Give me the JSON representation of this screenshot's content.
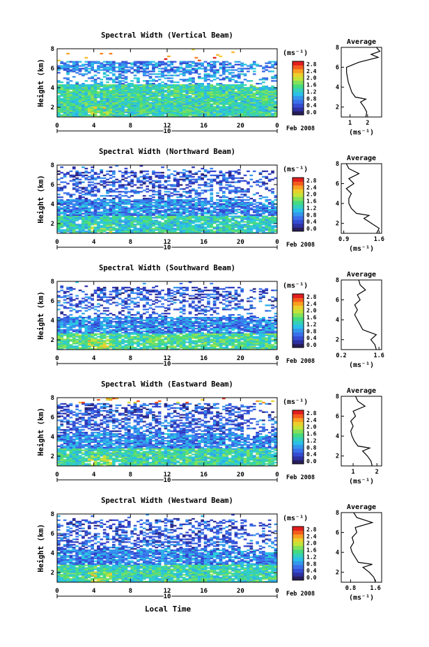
{
  "figure": {
    "xlabel_bottom": "Local Time",
    "date_label": "Feb 2008",
    "day_label": "10",
    "ylabel": "Height (km)",
    "colorbar_unit": "(ms⁻¹)",
    "avg_title": "Average",
    "avg_xlabel": "(ms⁻¹)"
  },
  "chart_data": [
    {
      "type": "heatmap",
      "title": "Spectral Width (Vertical Beam)",
      "xlabel": "Local Time",
      "ylabel": "Height (km)",
      "xlim": [
        0,
        24
      ],
      "ylim": [
        1,
        8
      ],
      "xticks": [
        "0",
        "4",
        "8",
        "12",
        "16",
        "20",
        "0"
      ],
      "yticks": [
        "2",
        "4",
        "6",
        "8"
      ],
      "colorbar": {
        "ticks": [
          "0.0",
          "0.4",
          "0.8",
          "1.2",
          "1.6",
          "2.0",
          "2.4",
          "2.8"
        ],
        "range": [
          0,
          2.9
        ]
      },
      "layers": [
        {
          "h0": 1.0,
          "h1": 4.3,
          "base": 1.4,
          "cov": 0.97
        },
        {
          "h0": 4.3,
          "h1": 5.5,
          "base": 0.9,
          "cov": 0.35
        },
        {
          "h0": 5.5,
          "h1": 6.6,
          "base": 0.8,
          "cov": 0.7
        },
        {
          "h0": 6.6,
          "h1": 8.0,
          "base": 2.6,
          "cov": 0.02
        }
      ],
      "avg_profile": {
        "xticks": [
          "1",
          "2"
        ],
        "xlim": [
          0.5,
          2.8
        ],
        "ylim": [
          1,
          8
        ],
        "yticks": [
          "2",
          "4",
          "6",
          "8"
        ],
        "height": [
          1.0,
          1.5,
          2.0,
          2.5,
          2.8,
          3.0,
          3.5,
          4.0,
          4.5,
          5.0,
          5.5,
          6.0,
          6.5,
          7.0,
          7.3,
          7.6,
          8.0
        ],
        "value": [
          1.9,
          1.95,
          1.8,
          1.6,
          1.9,
          1.3,
          1.1,
          1.0,
          0.9,
          0.85,
          0.8,
          0.8,
          1.5,
          2.6,
          2.2,
          2.7,
          2.5
        ]
      }
    },
    {
      "type": "heatmap",
      "title": "Spectral Width (Northward Beam)",
      "xlabel": "Local Time",
      "ylabel": "Height (km)",
      "xlim": [
        0,
        24
      ],
      "ylim": [
        1,
        8
      ],
      "xticks": [
        "0",
        "4",
        "8",
        "12",
        "16",
        "20",
        "0"
      ],
      "yticks": [
        "2",
        "4",
        "6",
        "8"
      ],
      "colorbar": {
        "ticks": [
          "0.0",
          "0.4",
          "0.8",
          "1.2",
          "1.6",
          "2.0",
          "2.4",
          "2.8"
        ],
        "range": [
          0,
          2.9
        ]
      },
      "layers": [
        {
          "h0": 1.0,
          "h1": 2.8,
          "base": 1.3,
          "cov": 0.9
        },
        {
          "h0": 2.8,
          "h1": 4.5,
          "base": 0.8,
          "cov": 0.85
        },
        {
          "h0": 4.5,
          "h1": 5.6,
          "base": 0.6,
          "cov": 0.4
        },
        {
          "h0": 5.6,
          "h1": 7.3,
          "base": 0.5,
          "cov": 0.45
        },
        {
          "h0": 7.3,
          "h1": 8.0,
          "base": 0.6,
          "cov": 0.08
        }
      ],
      "avg_profile": {
        "xticks": [
          "0.9",
          "1.6"
        ],
        "xlim": [
          0.85,
          1.65
        ],
        "ylim": [
          1,
          8
        ],
        "yticks": [
          "2",
          "4",
          "6",
          "8"
        ],
        "height": [
          1.0,
          1.5,
          2.0,
          2.5,
          2.8,
          3.0,
          3.5,
          4.0,
          4.5,
          5.0,
          5.5,
          6.0,
          6.5,
          7.0,
          7.5,
          8.0
        ],
        "value": [
          1.55,
          1.6,
          1.45,
          1.3,
          1.4,
          1.15,
          1.05,
          1.0,
          1.0,
          1.05,
          0.95,
          1.1,
          1.0,
          1.2,
          1.0,
          0.95
        ]
      }
    },
    {
      "type": "heatmap",
      "title": "Spectral Width (Southward Beam)",
      "xlabel": "Local Time",
      "ylabel": "Height (km)",
      "xlim": [
        0,
        24
      ],
      "ylim": [
        1,
        8
      ],
      "xticks": [
        "0",
        "4",
        "8",
        "12",
        "16",
        "20",
        "0"
      ],
      "yticks": [
        "2",
        "4",
        "6",
        "8"
      ],
      "colorbar": {
        "ticks": [
          "0.0",
          "0.4",
          "0.8",
          "1.2",
          "1.6",
          "2.0",
          "2.4",
          "2.8"
        ],
        "range": [
          0,
          2.9
        ]
      },
      "layers": [
        {
          "h0": 1.0,
          "h1": 2.6,
          "base": 1.5,
          "cov": 0.92
        },
        {
          "h0": 2.6,
          "h1": 4.3,
          "base": 0.8,
          "cov": 0.85
        },
        {
          "h0": 4.3,
          "h1": 5.8,
          "base": 0.6,
          "cov": 0.3
        },
        {
          "h0": 5.8,
          "h1": 7.3,
          "base": 0.5,
          "cov": 0.4
        },
        {
          "h0": 7.3,
          "h1": 8.0,
          "base": 0.7,
          "cov": 0.03
        }
      ],
      "avg_profile": {
        "xticks": [
          "0.2",
          "1.6"
        ],
        "xlim": [
          0.2,
          1.7
        ],
        "ylim": [
          1,
          8
        ],
        "yticks": [
          "2",
          "4",
          "6",
          "8"
        ],
        "height": [
          1.0,
          1.5,
          2.0,
          2.5,
          2.8,
          3.0,
          3.5,
          4.0,
          4.5,
          5.0,
          5.5,
          6.0,
          6.5,
          7.0,
          7.5,
          8.0
        ],
        "value": [
          1.5,
          1.45,
          1.3,
          1.5,
          1.2,
          1.0,
          0.9,
          0.8,
          0.7,
          0.8,
          0.7,
          0.9,
          0.8,
          1.1,
          0.9,
          0.85
        ]
      }
    },
    {
      "type": "heatmap",
      "title": "Spectral Width (Eastward Beam)",
      "xlabel": "Local Time",
      "ylabel": "Height (km)",
      "xlim": [
        0,
        24
      ],
      "ylim": [
        1,
        8
      ],
      "xticks": [
        "0",
        "4",
        "8",
        "12",
        "16",
        "20",
        "0"
      ],
      "yticks": [
        "2",
        "4",
        "6",
        "8"
      ],
      "colorbar": {
        "ticks": [
          "0.0",
          "0.4",
          "0.8",
          "1.2",
          "1.6",
          "2.0",
          "2.4",
          "2.8"
        ],
        "range": [
          0,
          2.9
        ]
      },
      "layers": [
        {
          "h0": 1.0,
          "h1": 2.8,
          "base": 1.4,
          "cov": 0.93
        },
        {
          "h0": 2.8,
          "h1": 4.3,
          "base": 0.8,
          "cov": 0.85
        },
        {
          "h0": 4.3,
          "h1": 5.7,
          "base": 0.6,
          "cov": 0.55
        },
        {
          "h0": 5.7,
          "h1": 7.4,
          "base": 0.5,
          "cov": 0.5
        },
        {
          "h0": 7.4,
          "h1": 8.0,
          "base": 2.4,
          "cov": 0.06
        }
      ],
      "avg_profile": {
        "xticks": [
          "1",
          "2"
        ],
        "xlim": [
          0.5,
          2.2
        ],
        "ylim": [
          1,
          8
        ],
        "yticks": [
          "2",
          "4",
          "6",
          "8"
        ],
        "height": [
          1.0,
          1.5,
          2.0,
          2.5,
          2.8,
          3.0,
          3.5,
          4.0,
          4.5,
          5.0,
          5.5,
          6.0,
          6.5,
          7.0,
          7.5,
          8.0
        ],
        "value": [
          1.8,
          1.75,
          1.6,
          1.4,
          1.7,
          1.2,
          1.05,
          0.95,
          0.9,
          1.0,
          0.9,
          1.1,
          1.0,
          1.5,
          1.2,
          1.1
        ]
      }
    },
    {
      "type": "heatmap",
      "title": "Spectral Width (Westward Beam)",
      "xlabel": "Local Time",
      "ylabel": "Height (km)",
      "xlim": [
        0,
        24
      ],
      "ylim": [
        1,
        8
      ],
      "xticks": [
        "0",
        "4",
        "8",
        "12",
        "16",
        "20",
        "0"
      ],
      "yticks": [
        "2",
        "4",
        "6",
        "8"
      ],
      "colorbar": {
        "ticks": [
          "0.0",
          "0.4",
          "0.8",
          "1.2",
          "1.6",
          "2.0",
          "2.4",
          "2.8"
        ],
        "range": [
          0,
          2.9
        ]
      },
      "layers": [
        {
          "h0": 1.0,
          "h1": 2.8,
          "base": 1.4,
          "cov": 0.93
        },
        {
          "h0": 2.8,
          "h1": 4.3,
          "base": 0.8,
          "cov": 0.85
        },
        {
          "h0": 4.3,
          "h1": 5.7,
          "base": 0.6,
          "cov": 0.5
        },
        {
          "h0": 5.7,
          "h1": 7.4,
          "base": 0.5,
          "cov": 0.45
        },
        {
          "h0": 7.4,
          "h1": 8.0,
          "base": 0.6,
          "cov": 0.02
        }
      ],
      "avg_profile": {
        "xticks": [
          "0.8",
          "1.6"
        ],
        "xlim": [
          0.5,
          1.8
        ],
        "ylim": [
          1,
          8
        ],
        "yticks": [
          "2",
          "4",
          "6",
          "8"
        ],
        "height": [
          1.0,
          1.5,
          2.0,
          2.5,
          2.8,
          3.0,
          3.5,
          4.0,
          4.5,
          5.0,
          5.5,
          6.0,
          6.5,
          7.0,
          7.5,
          8.0
        ],
        "value": [
          1.6,
          1.55,
          1.4,
          1.2,
          1.5,
          1.05,
          0.95,
          0.85,
          0.8,
          0.9,
          0.85,
          1.0,
          0.95,
          1.5,
          1.0,
          0.9
        ]
      }
    }
  ]
}
